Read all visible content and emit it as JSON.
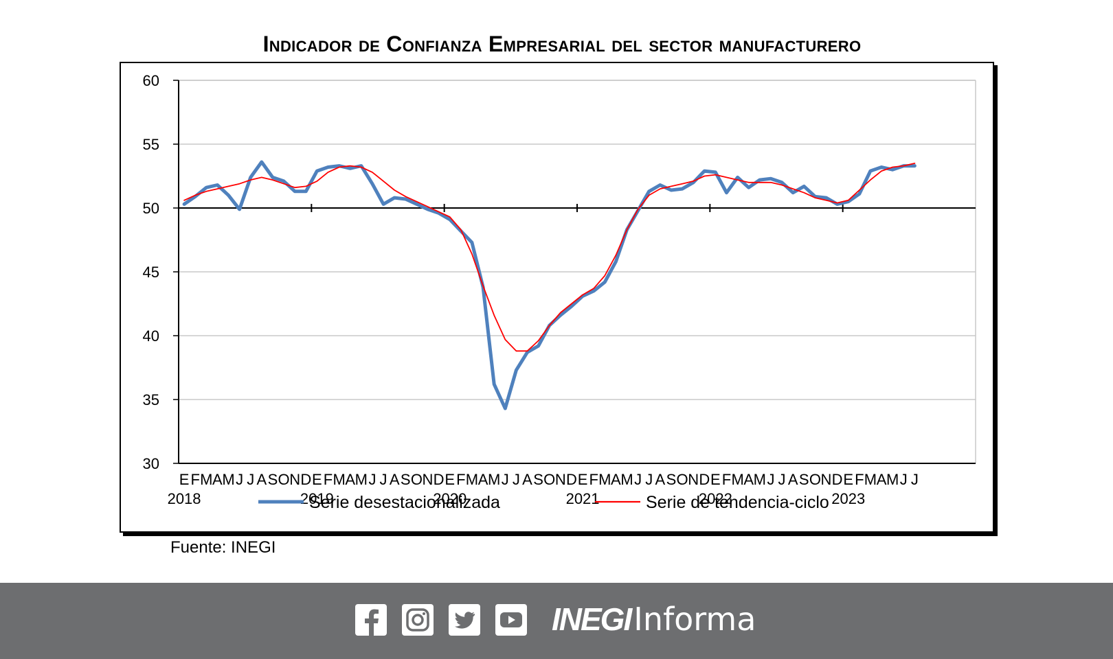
{
  "page": {
    "title": "Indicador de Confianza Empresarial del sector manufacturero",
    "source": "Fuente: INEGI"
  },
  "footer": {
    "icons": [
      "facebook-icon",
      "instagram-icon",
      "twitter-icon",
      "youtube-icon"
    ],
    "brand_inegi": "INEGI",
    "brand_informa": "Informa",
    "background": "#6d6e70"
  },
  "chart_data": {
    "type": "line",
    "title": "Indicador de Confianza Empresarial del sector manufacturero",
    "xlabel": "",
    "ylabel": "",
    "ylim": [
      30,
      60
    ],
    "yticks": [
      30,
      35,
      40,
      45,
      50,
      55,
      60
    ],
    "reference_line": 50,
    "grid": true,
    "legend_position": "bottom",
    "month_labels": [
      "E",
      "F",
      "M",
      "A",
      "M",
      "J",
      "J",
      "A",
      "S",
      "O",
      "N",
      "D"
    ],
    "year_labels": [
      "2018",
      "2019",
      "2020",
      "2021",
      "2022",
      "2023"
    ],
    "x": [
      "2018-01",
      "2018-02",
      "2018-03",
      "2018-04",
      "2018-05",
      "2018-06",
      "2018-07",
      "2018-08",
      "2018-09",
      "2018-10",
      "2018-11",
      "2018-12",
      "2019-01",
      "2019-02",
      "2019-03",
      "2019-04",
      "2019-05",
      "2019-06",
      "2019-07",
      "2019-08",
      "2019-09",
      "2019-10",
      "2019-11",
      "2019-12",
      "2020-01",
      "2020-02",
      "2020-03",
      "2020-04",
      "2020-05",
      "2020-06",
      "2020-07",
      "2020-08",
      "2020-09",
      "2020-10",
      "2020-11",
      "2020-12",
      "2021-01",
      "2021-02",
      "2021-03",
      "2021-04",
      "2021-05",
      "2021-06",
      "2021-07",
      "2021-08",
      "2021-09",
      "2021-10",
      "2021-11",
      "2021-12",
      "2022-01",
      "2022-02",
      "2022-03",
      "2022-04",
      "2022-05",
      "2022-06",
      "2022-07",
      "2022-08",
      "2022-09",
      "2022-10",
      "2022-11",
      "2022-12",
      "2023-01",
      "2023-02",
      "2023-03",
      "2023-04",
      "2023-05",
      "2023-06",
      "2023-07"
    ],
    "series": [
      {
        "name": "Serie desestacionalizada",
        "color": "#4f81bd",
        "values": [
          50.3,
          50.9,
          51.6,
          51.8,
          51.0,
          49.9,
          52.4,
          53.6,
          52.4,
          52.1,
          51.3,
          51.3,
          52.9,
          53.2,
          53.3,
          53.1,
          53.3,
          51.9,
          50.3,
          50.8,
          50.7,
          50.3,
          49.9,
          49.6,
          49.1,
          48.2,
          47.3,
          43.8,
          36.2,
          34.3,
          37.3,
          38.7,
          39.2,
          40.8,
          41.6,
          42.3,
          43.1,
          43.5,
          44.2,
          45.8,
          48.3,
          49.8,
          51.3,
          51.8,
          51.4,
          51.5,
          52.0,
          52.9,
          52.8,
          51.2,
          52.4,
          51.6,
          52.2,
          52.3,
          52.0,
          51.2,
          51.7,
          50.9,
          50.8,
          50.3,
          50.5,
          51.1,
          52.9,
          53.2,
          53.0,
          53.3,
          53.3
        ]
      },
      {
        "name": "Serie de tendencia-ciclo",
        "color": "#ff0000",
        "values": [
          50.6,
          51.0,
          51.3,
          51.5,
          51.7,
          51.9,
          52.2,
          52.4,
          52.2,
          51.9,
          51.6,
          51.7,
          52.1,
          52.8,
          53.2,
          53.3,
          53.2,
          52.8,
          52.1,
          51.4,
          50.9,
          50.5,
          50.1,
          49.7,
          49.3,
          48.3,
          46.4,
          43.9,
          41.6,
          39.7,
          38.8,
          38.8,
          39.6,
          40.8,
          41.8,
          42.5,
          43.2,
          43.7,
          44.7,
          46.3,
          48.3,
          49.9,
          51.0,
          51.5,
          51.7,
          51.9,
          52.1,
          52.5,
          52.6,
          52.4,
          52.2,
          52.0,
          52.0,
          52.0,
          51.8,
          51.5,
          51.2,
          50.8,
          50.6,
          50.4,
          50.6,
          51.4,
          52.2,
          52.9,
          53.2,
          53.3,
          53.5
        ]
      }
    ]
  }
}
